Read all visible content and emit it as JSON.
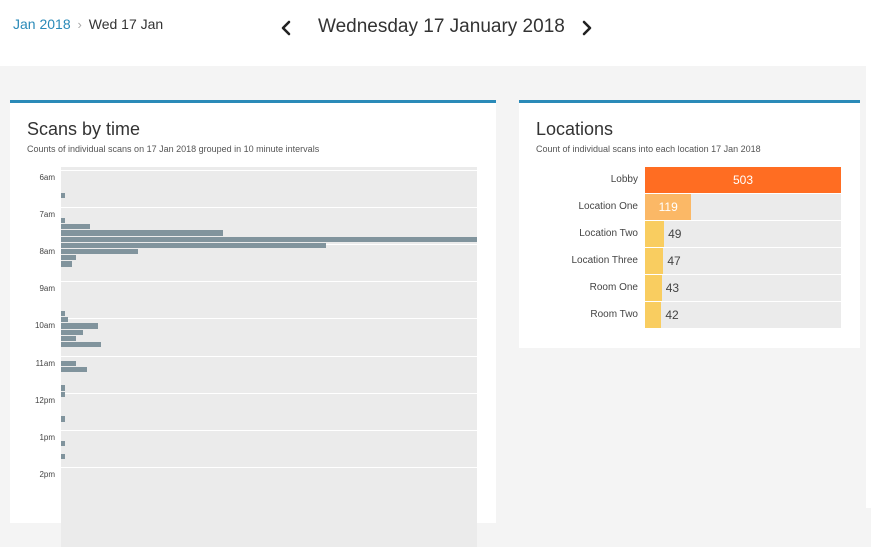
{
  "breadcrumb": {
    "parent": "Jan 2018",
    "separator": "›",
    "current": "Wed 17 Jan"
  },
  "header": {
    "date_title": "Wednesday 17 January 2018",
    "prev_icon": "chevron-left-icon",
    "next_icon": "chevron-right-icon"
  },
  "scans_card": {
    "title": "Scans by time",
    "subtitle": "Counts of individual scans on 17 Jan 2018 grouped in 10 minute intervals"
  },
  "locations_card": {
    "title": "Locations",
    "subtitle": "Count of individual scans into each location 17 Jan 2018"
  },
  "colors": {
    "accent": "#2a8ab8",
    "bar_time": "#81949d",
    "bar_top": "#ff6d22",
    "bar_mid": "#fbb866",
    "bar_low": "#f9cd60",
    "plot_bg": "#ebebeb"
  },
  "chart_data": [
    {
      "type": "bar",
      "orientation": "horizontal",
      "time_ticks": [
        "6am",
        "7am",
        "8am",
        "9am",
        "10am",
        "11am",
        "12pm",
        "1pm",
        "2pm"
      ],
      "x": [
        "6:10",
        "6:20",
        "6:30",
        "6:40",
        "6:50",
        "7:00",
        "7:10",
        "7:20",
        "7:30",
        "7:40",
        "7:50",
        "8:00",
        "8:10",
        "8:20",
        "8:30",
        "8:40",
        "8:50",
        "9:00",
        "9:10",
        "9:20",
        "9:30",
        "9:40",
        "9:50",
        "10:00",
        "10:10",
        "10:20",
        "10:30",
        "10:40",
        "10:50",
        "11:00",
        "11:10",
        "11:20",
        "11:30",
        "11:40",
        "11:50",
        "12:00",
        "12:10",
        "12:20",
        "12:30",
        "12:40",
        "12:50",
        "13:00",
        "13:10",
        "13:20",
        "13:30",
        "13:40",
        "13:50",
        "14:00"
      ],
      "values": [
        0,
        0,
        1,
        0,
        0,
        0,
        1,
        8,
        44,
        113,
        72,
        21,
        4,
        3,
        0,
        0,
        0,
        0,
        0,
        0,
        0,
        1,
        2,
        10,
        6,
        4,
        11,
        0,
        0,
        4,
        7,
        0,
        0,
        1,
        1,
        0,
        0,
        0,
        1,
        0,
        0,
        0,
        1,
        0,
        1,
        0,
        0,
        0
      ]
    },
    {
      "type": "bar",
      "orientation": "horizontal",
      "categories": [
        "Lobby",
        "Location One",
        "Location Two",
        "Location Three",
        "Room One",
        "Room Two"
      ],
      "values": [
        503,
        119,
        49,
        47,
        43,
        42
      ]
    }
  ]
}
